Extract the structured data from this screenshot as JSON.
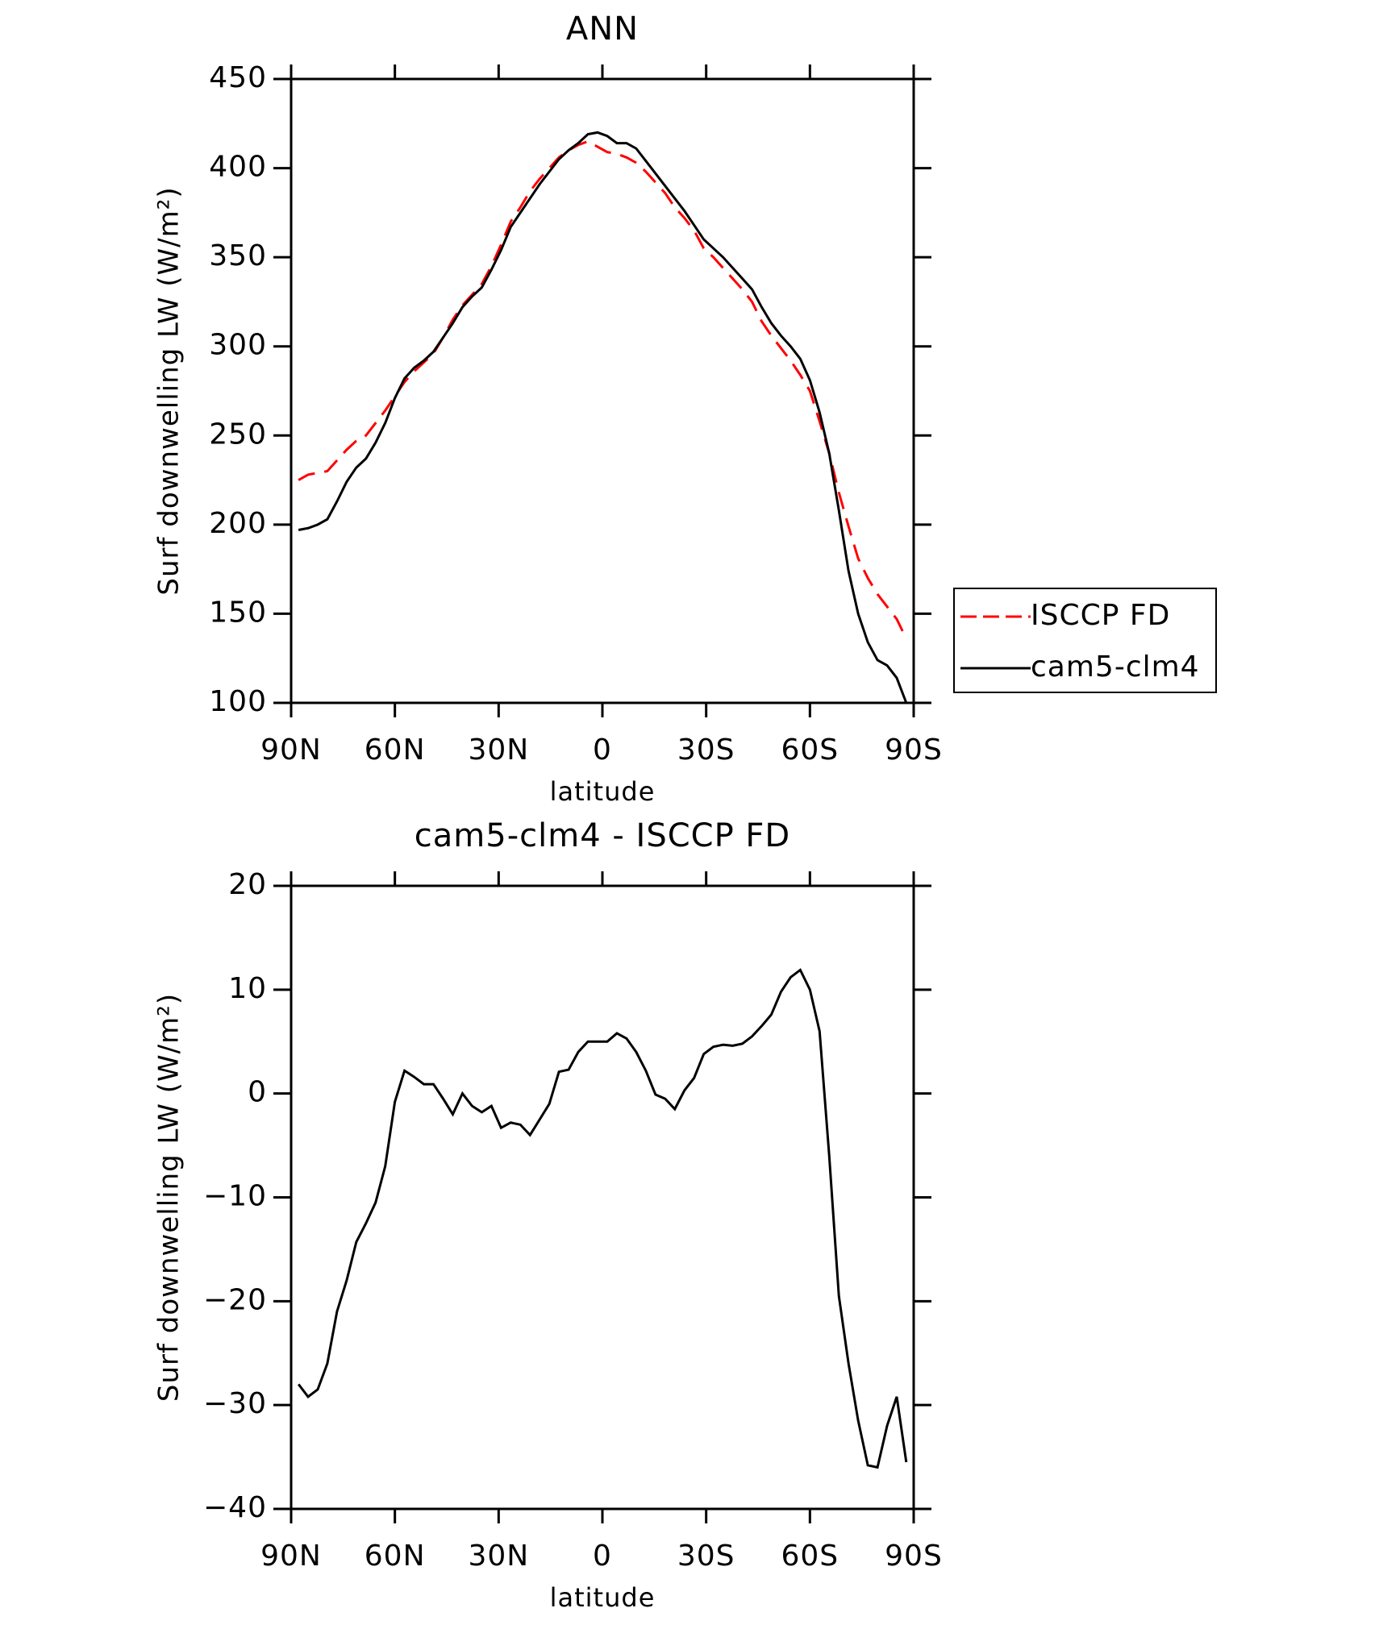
{
  "chart_data": [
    {
      "type": "line",
      "title": "ANN",
      "xlabel": "latitude",
      "ylabel": "Surf downwelling LW (W/m²)",
      "x": [
        87.86,
        85.1,
        82.31,
        79.53,
        76.74,
        73.95,
        71.16,
        68.37,
        65.58,
        62.79,
        60.0,
        57.21,
        54.42,
        51.63,
        48.84,
        46.05,
        43.26,
        40.47,
        37.67,
        34.88,
        32.09,
        29.3,
        26.51,
        23.72,
        20.93,
        18.14,
        15.35,
        12.56,
        9.77,
        6.98,
        4.19,
        1.4,
        -1.4,
        -4.19,
        -6.98,
        -9.77,
        -12.56,
        -15.35,
        -18.14,
        -20.93,
        -23.72,
        -26.51,
        -29.3,
        -32.09,
        -34.88,
        -37.67,
        -40.47,
        -43.26,
        -46.05,
        -48.84,
        -51.63,
        -54.42,
        -57.21,
        -60.0,
        -62.79,
        -65.58,
        -68.37,
        -71.16,
        -73.95,
        -76.74,
        -79.53,
        -82.31,
        -85.1,
        -87.86
      ],
      "series": [
        {
          "name": "ISCCP FD",
          "color": "#ff0000",
          "dash": "dashed",
          "values": [
            225,
            228,
            229,
            230,
            236,
            242,
            247,
            250,
            257,
            264,
            272,
            280,
            286,
            291,
            296,
            305,
            315,
            323,
            329,
            335,
            345,
            357,
            370,
            378,
            387,
            394,
            400,
            406,
            410,
            413,
            415,
            412,
            409,
            408,
            406,
            403,
            398,
            392,
            386,
            378,
            372,
            365,
            355,
            350,
            344,
            338,
            332,
            325,
            314,
            306,
            299,
            292,
            284,
            275,
            258,
            240,
            218,
            199,
            181,
            170,
            161,
            154,
            147,
            136
          ]
        },
        {
          "name": "cam5-clm4",
          "color": "#000000",
          "dash": "solid",
          "values": [
            197,
            198,
            200,
            203,
            213,
            224,
            232,
            237,
            246,
            257,
            271,
            282,
            288,
            292,
            297,
            305,
            313,
            322,
            328,
            333,
            343,
            354,
            367,
            375,
            383,
            391,
            398,
            405,
            410,
            414,
            419,
            420,
            418,
            414,
            414,
            411,
            404,
            397,
            390,
            383,
            376,
            368,
            360,
            355,
            350,
            344,
            338,
            332,
            322,
            313,
            306,
            300,
            293,
            281,
            263,
            240,
            208,
            174,
            150,
            134,
            124,
            121,
            114,
            100
          ]
        }
      ],
      "xlim": [
        90,
        -90
      ],
      "xticks": [
        {
          "value": 90,
          "label": "90N"
        },
        {
          "value": 60,
          "label": "60N"
        },
        {
          "value": 30,
          "label": "30N"
        },
        0,
        {
          "value": -30,
          "label": "30S"
        },
        {
          "value": -60,
          "label": "60S"
        },
        {
          "value": -90,
          "label": "90S"
        }
      ],
      "ylim": [
        100,
        450
      ],
      "yticks": [
        100,
        150,
        200,
        250,
        300,
        350,
        400,
        450
      ],
      "legend": "outside-right"
    },
    {
      "type": "line",
      "title": "cam5-clm4 - ISCCP FD",
      "xlabel": "latitude",
      "ylabel": "Surf downwelling LW (W/m²)",
      "x": [
        87.86,
        85.1,
        82.31,
        79.53,
        76.74,
        73.95,
        71.16,
        68.37,
        65.58,
        62.79,
        60.0,
        57.21,
        54.42,
        51.63,
        48.84,
        46.05,
        43.26,
        40.47,
        37.67,
        34.88,
        32.09,
        29.3,
        26.51,
        23.72,
        20.93,
        18.14,
        15.35,
        12.56,
        9.77,
        6.98,
        4.19,
        1.4,
        -1.4,
        -4.19,
        -6.98,
        -9.77,
        -12.56,
        -15.35,
        -18.14,
        -20.93,
        -23.72,
        -26.51,
        -29.3,
        -32.09,
        -34.88,
        -37.67,
        -40.47,
        -43.26,
        -46.05,
        -48.84,
        -51.63,
        -54.42,
        -57.21,
        -60.0,
        -62.79,
        -65.58,
        -68.37,
        -71.16,
        -73.95,
        -76.74,
        -79.53,
        -82.31,
        -85.1,
        -87.86
      ],
      "series": [
        {
          "color": "#000000",
          "dash": "solid",
          "values": [
            -28,
            -29.2,
            -28.5,
            -26,
            -21,
            -18,
            -14.3,
            -12.5,
            -10.5,
            -7,
            -0.8,
            2.2,
            1.6,
            0.9,
            0.9,
            -0.5,
            -2,
            0,
            -1.2,
            -1.8,
            -1.2,
            -3.3,
            -2.8,
            -3,
            -4,
            -2.5,
            -1,
            2.1,
            2.3,
            4,
            5,
            5,
            5,
            5.8,
            5.3,
            4,
            2.2,
            -0.1,
            -0.5,
            -1.5,
            0.3,
            1.5,
            3.8,
            4.5,
            4.7,
            4.6,
            4.8,
            5.5,
            6.5,
            7.6,
            9.8,
            11.2,
            11.9,
            10,
            6,
            -6,
            -19.5,
            -26,
            -31.5,
            -35.8,
            -36,
            -32,
            -29.2,
            -35.5
          ]
        }
      ],
      "xlim": [
        90,
        -90
      ],
      "xticks": [
        {
          "value": 90,
          "label": "90N"
        },
        {
          "value": 60,
          "label": "60N"
        },
        {
          "value": 30,
          "label": "30N"
        },
        0,
        {
          "value": -30,
          "label": "30S"
        },
        {
          "value": -60,
          "label": "60S"
        },
        {
          "value": -90,
          "label": "90S"
        }
      ],
      "ylim": [
        -40,
        20
      ],
      "yticks": [
        {
          "value": -40,
          "label": "−40"
        },
        {
          "value": -30,
          "label": "−30"
        },
        {
          "value": -20,
          "label": "−20"
        },
        {
          "value": -10,
          "label": "−10"
        },
        0,
        10,
        20
      ]
    }
  ]
}
